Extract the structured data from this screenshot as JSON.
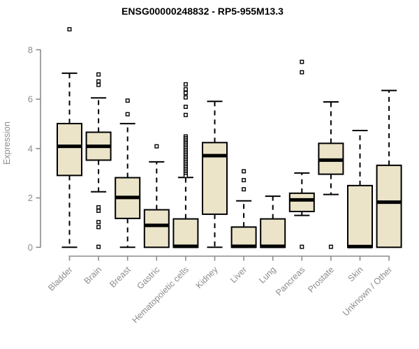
{
  "chart_data": {
    "type": "boxplot",
    "title": "ENSG00000248832 - RP5-955M13.3",
    "ylabel": "Expression",
    "xlabel": "",
    "yticks": [
      0,
      2,
      4,
      6,
      8
    ],
    "ylim": [
      0,
      9
    ],
    "grid": false,
    "legend": false,
    "categories": [
      "Bladder",
      "Brain",
      "Breast",
      "Gastric",
      "Hematopoietic cells",
      "Kidney",
      "Liver",
      "Lung",
      "Pancreas",
      "Prostate",
      "Skin",
      "Unknown / Other"
    ],
    "series": [
      {
        "category": "Bladder",
        "whisker_low": 0,
        "q1": 2.91,
        "median": 4.09,
        "q3": 5.01,
        "whisker_high": 7.05,
        "outliers": [
          8.83
        ]
      },
      {
        "category": "Brain",
        "whisker_low": 2.25,
        "q1": 3.53,
        "median": 4.09,
        "q3": 4.66,
        "whisker_high": 6.05,
        "outliers": [
          7.0,
          6.72,
          6.58,
          1.62,
          1.48,
          1.02,
          0.82,
          0.02
        ]
      },
      {
        "category": "Breast",
        "whisker_low": 0,
        "q1": 1.17,
        "median": 2.02,
        "q3": 2.82,
        "whisker_high": 5.01,
        "outliers": [
          5.94,
          5.39
        ]
      },
      {
        "category": "Gastric",
        "whisker_low": 0,
        "q1": 0,
        "median": 0.89,
        "q3": 1.52,
        "whisker_high": 3.46,
        "outliers": [
          4.09
        ]
      },
      {
        "category": "Hematopoietic cells",
        "whisker_low": 0,
        "q1": 0,
        "median": 0.04,
        "q3": 1.15,
        "whisker_high": 2.83,
        "outliers": [
          6.6,
          6.4,
          6.25,
          6.07,
          5.69,
          5.36,
          4.49,
          4.42,
          4.35,
          4.28,
          4.22,
          4.15,
          4.08,
          4.01,
          3.94,
          3.87,
          3.8,
          3.73,
          3.66,
          3.59,
          3.52,
          3.45,
          3.38,
          3.31,
          3.24,
          3.17,
          3.1,
          3.03,
          2.96,
          2.89
        ]
      },
      {
        "category": "Kidney",
        "whisker_low": 0,
        "q1": 1.34,
        "median": 3.71,
        "q3": 4.24,
        "whisker_high": 5.91,
        "outliers": []
      },
      {
        "category": "Liver",
        "whisker_low": 0,
        "q1": 0,
        "median": 0.04,
        "q3": 0.82,
        "whisker_high": 1.88,
        "outliers": [
          3.08,
          2.72,
          2.35
        ]
      },
      {
        "category": "Lung",
        "whisker_low": 0,
        "q1": 0,
        "median": 0.04,
        "q3": 1.15,
        "whisker_high": 2.07,
        "outliers": []
      },
      {
        "category": "Pancreas",
        "whisker_low": 1.29,
        "q1": 1.45,
        "median": 1.92,
        "q3": 2.19,
        "whisker_high": 3.01,
        "outliers": [
          7.51,
          7.09,
          0.02
        ]
      },
      {
        "category": "Prostate",
        "whisker_low": 2.14,
        "q1": 2.96,
        "median": 3.53,
        "q3": 4.21,
        "whisker_high": 5.89,
        "outliers": [
          0.02
        ]
      },
      {
        "category": "Skin",
        "whisker_low": 0,
        "q1": 0,
        "median": 0.03,
        "q3": 2.5,
        "whisker_high": 4.73,
        "outliers": []
      },
      {
        "category": "Unknown / Other",
        "whisker_low": 0,
        "q1": 0,
        "median": 1.83,
        "q3": 3.32,
        "whisker_high": 6.35,
        "outliers": []
      }
    ],
    "colors": {
      "box_fill": "#EBE4C9",
      "box_stroke": "#000000",
      "median": "#000000",
      "whisker": "#000000",
      "axis": "#8C8C8C",
      "tick_label": "#8C8C8C",
      "title": "#000000",
      "background": "#FFFFFF"
    }
  }
}
